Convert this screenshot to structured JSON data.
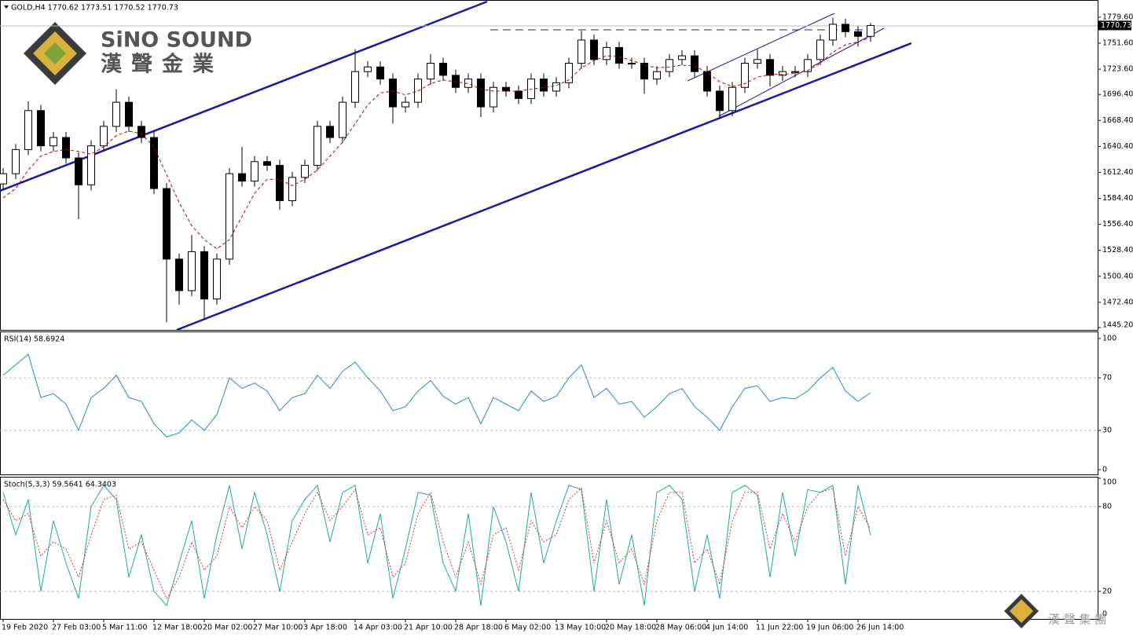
{
  "chart_data": [
    {
      "type": "candlestick",
      "title": "GOLD,H4  1770.62 1773.51 1770.52 1770.73",
      "grid": false,
      "open": [
        1600,
        1611,
        1637,
        1679,
        1641,
        1650,
        1628,
        1599,
        1641,
        1662,
        1688,
        1662,
        1650,
        1595,
        1519,
        1485,
        1527,
        1476,
        1519,
        1611,
        1603,
        1624,
        1620,
        1582,
        1607,
        1620,
        1662,
        1650,
        1688,
        1721,
        1726,
        1713,
        1683,
        1688,
        1713,
        1730,
        1717,
        1704,
        1713,
        1683,
        1704,
        1700,
        1692,
        1713,
        1700,
        1709,
        1730,
        1755,
        1734,
        1747,
        1730,
        1730,
        1713,
        1721,
        1734,
        1738,
        1721,
        1700,
        1679,
        1704,
        1730,
        1734,
        1717,
        1721,
        1721,
        1734,
        1755,
        1772,
        1764,
        1759
      ],
      "high": [
        1617,
        1643,
        1689,
        1685,
        1656,
        1656,
        1634,
        1647,
        1668,
        1702,
        1694,
        1668,
        1656,
        1601,
        1525,
        1545,
        1533,
        1525,
        1617,
        1640,
        1630,
        1630,
        1626,
        1613,
        1626,
        1668,
        1668,
        1694,
        1745,
        1732,
        1732,
        1719,
        1694,
        1719,
        1740,
        1736,
        1723,
        1719,
        1719,
        1710,
        1710,
        1706,
        1719,
        1719,
        1715,
        1736,
        1765,
        1761,
        1753,
        1753,
        1736,
        1736,
        1727,
        1740,
        1744,
        1744,
        1727,
        1706,
        1710,
        1736,
        1745,
        1740,
        1727,
        1727,
        1740,
        1761,
        1779,
        1778,
        1770,
        1773.51
      ],
      "low": [
        1594,
        1605,
        1631,
        1635,
        1635,
        1622,
        1562,
        1593,
        1635,
        1656,
        1656,
        1644,
        1589,
        1451,
        1470,
        1479,
        1455,
        1470,
        1513,
        1597,
        1597,
        1614,
        1572,
        1576,
        1601,
        1614,
        1644,
        1644,
        1682,
        1715,
        1707,
        1665,
        1677,
        1682,
        1707,
        1711,
        1698,
        1698,
        1672,
        1677,
        1694,
        1686,
        1686,
        1694,
        1694,
        1703,
        1724,
        1728,
        1728,
        1724,
        1724,
        1697,
        1707,
        1715,
        1728,
        1715,
        1694,
        1670,
        1673,
        1698,
        1724,
        1705,
        1711,
        1715,
        1715,
        1728,
        1749,
        1758,
        1748,
        1753
      ],
      "close": [
        1611,
        1637,
        1679,
        1641,
        1650,
        1628,
        1599,
        1641,
        1662,
        1688,
        1662,
        1650,
        1595,
        1519,
        1485,
        1527,
        1476,
        1519,
        1611,
        1603,
        1624,
        1620,
        1582,
        1607,
        1620,
        1662,
        1650,
        1688,
        1721,
        1726,
        1713,
        1683,
        1688,
        1713,
        1730,
        1717,
        1704,
        1713,
        1683,
        1704,
        1700,
        1692,
        1713,
        1700,
        1709,
        1730,
        1755,
        1734,
        1747,
        1730,
        1730,
        1713,
        1721,
        1734,
        1738,
        1721,
        1700,
        1679,
        1704,
        1730,
        1734,
        1717,
        1721,
        1721,
        1734,
        1755,
        1772,
        1764,
        1759,
        1770.73
      ],
      "overlay": {
        "color": "#c00000",
        "values": [
          1585,
          1595,
          1615,
          1630,
          1635,
          1637,
          1635,
          1632,
          1640,
          1652,
          1657,
          1654,
          1640,
          1610,
          1580,
          1555,
          1540,
          1530,
          1540,
          1565,
          1590,
          1605,
          1605,
          1598,
          1605,
          1615,
          1630,
          1645,
          1665,
          1685,
          1698,
          1700,
          1696,
          1700,
          1708,
          1712,
          1710,
          1708,
          1702,
          1700,
          1700,
          1700,
          1702,
          1704,
          1706,
          1712,
          1725,
          1733,
          1738,
          1737,
          1733,
          1728,
          1725,
          1726,
          1728,
          1727,
          1720,
          1710,
          1705,
          1708,
          1715,
          1718,
          1718,
          1719,
          1722,
          1730,
          1742,
          1750,
          1753,
          1758
        ]
      },
      "xlim": [
        -0.25,
        87.06
      ],
      "xticks": [
        {
          "value": 0,
          "label": "19 Feb 2020"
        },
        {
          "value": 4,
          "label": "27 Feb 03:00"
        },
        {
          "value": 8,
          "label": "5 Mar 11:00"
        },
        {
          "value": 12,
          "label": "12 Mar 18:00"
        },
        {
          "value": 16,
          "label": "20 Mar 02:00"
        },
        {
          "value": 20,
          "label": "27 Mar 10:00"
        },
        {
          "value": 24,
          "label": "3 Apr 18:00"
        },
        {
          "value": 28,
          "label": "14 Apr 03:00"
        },
        {
          "value": 32,
          "label": "21 Apr 10:00"
        },
        {
          "value": 36,
          "label": "28 Apr 18:00"
        },
        {
          "value": 40,
          "label": "6 May 02:00"
        },
        {
          "value": 44,
          "label": "13 May 10:00"
        },
        {
          "value": 48,
          "label": "20 May 18:00"
        },
        {
          "value": 52,
          "label": "28 May 06:00"
        },
        {
          "value": 56,
          "label": "4 Jun 14:00"
        },
        {
          "value": 60,
          "label": "11 Jun 22:00"
        },
        {
          "value": 64,
          "label": "19 Jun 06:00"
        },
        {
          "value": 68,
          "label": "26 Jun 14:00"
        }
      ],
      "ylim": [
        1442.7,
        1797.3
      ],
      "yticks": [
        {
          "value": 1779.6,
          "label": "1779.60"
        },
        {
          "value": 1751.6,
          "label": "1751.60"
        },
        {
          "value": 1723.6,
          "label": "1723.60"
        },
        {
          "value": 1696.4,
          "label": "1696.40"
        },
        {
          "value": 1668.4,
          "label": "1668.40"
        },
        {
          "value": 1640.4,
          "label": "1640.40"
        },
        {
          "value": 1612.4,
          "label": "1612.40"
        },
        {
          "value": 1584.4,
          "label": "1584.40"
        },
        {
          "value": 1556.4,
          "label": "1556.40"
        },
        {
          "value": 1528.4,
          "label": "1528.40"
        },
        {
          "value": 1500.4,
          "label": "1500.40"
        },
        {
          "value": 1472.4,
          "label": "1472.40"
        },
        {
          "value": 1445.2,
          "label": "1445.20"
        }
      ]
    },
    {
      "type": "line",
      "title": "RSI(14) 58.6924",
      "grid": true,
      "ylim": [
        -3.6,
        104.8
      ],
      "yticks": [
        0,
        30,
        70,
        100
      ],
      "series": [
        {
          "color": "#2a86d0",
          "values": [
            72,
            80,
            88,
            55,
            58,
            50,
            30,
            55,
            62,
            72,
            55,
            52,
            35,
            25,
            28,
            38,
            30,
            42,
            70,
            62,
            66,
            60,
            45,
            55,
            58,
            72,
            62,
            75,
            82,
            70,
            60,
            45,
            48,
            60,
            68,
            56,
            50,
            55,
            35,
            55,
            50,
            45,
            60,
            52,
            56,
            70,
            80,
            55,
            62,
            50,
            52,
            40,
            48,
            58,
            62,
            48,
            40,
            30,
            48,
            62,
            64,
            52,
            55,
            54,
            60,
            70,
            78,
            60,
            52,
            58.6924
          ]
        }
      ]
    },
    {
      "type": "line",
      "title": "Stoch(5,3,3) 59.5641 64.3403",
      "grid": true,
      "ylim": [
        0.5,
        100.5
      ],
      "yticks": [
        0,
        20,
        80,
        100
      ],
      "series": [
        {
          "color": "#1fa7a7",
          "values": [
            90,
            60,
            85,
            20,
            70,
            40,
            15,
            80,
            95,
            85,
            30,
            60,
            20,
            10,
            40,
            70,
            15,
            60,
            95,
            50,
            90,
            60,
            20,
            70,
            85,
            95,
            55,
            90,
            95,
            40,
            75,
            15,
            50,
            90,
            88,
            40,
            20,
            75,
            10,
            80,
            55,
            20,
            90,
            40,
            70,
            95,
            92,
            20,
            85,
            25,
            60,
            10,
            90,
            95,
            85,
            20,
            60,
            15,
            90,
            95,
            88,
            30,
            90,
            45,
            92,
            90,
            95,
            25,
            95,
            59.5641
          ]
        },
        {
          "color": "#e03030",
          "dashed": true,
          "values": [
            85,
            70,
            75,
            45,
            55,
            50,
            30,
            60,
            85,
            88,
            50,
            55,
            35,
            15,
            30,
            55,
            35,
            45,
            80,
            65,
            80,
            70,
            35,
            55,
            75,
            90,
            70,
            80,
            92,
            60,
            65,
            30,
            40,
            75,
            90,
            55,
            30,
            55,
            25,
            60,
            65,
            35,
            70,
            55,
            60,
            85,
            93,
            40,
            70,
            40,
            50,
            25,
            70,
            90,
            90,
            40,
            50,
            25,
            70,
            90,
            90,
            50,
            75,
            55,
            80,
            90,
            93,
            45,
            80,
            64.3403
          ]
        }
      ]
    }
  ],
  "logo": {
    "name": "SiNO SOUND",
    "chinese": "漢聲金業"
  },
  "watermark": "漢 聲 集 團"
}
